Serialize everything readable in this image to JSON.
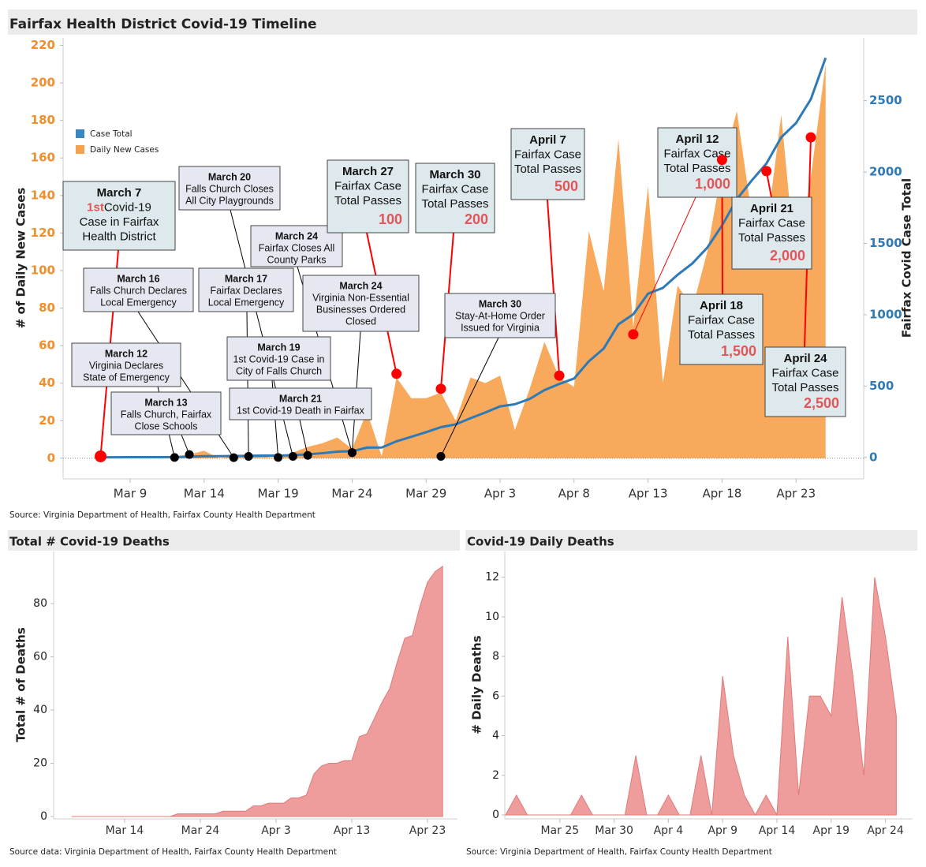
{
  "chart_data": [
    {
      "type": "combo",
      "title": "Fairfax Health District Covid-19 Timeline",
      "ylabel": "# of Daily New Cases",
      "y2label": "Fairfax Covid Case Total",
      "source": "Source: Virginia Department of Health, Fairfax County Health Department",
      "categories": [
        null,
        null,
        "Mar 9",
        null,
        null,
        null,
        null,
        "Mar 14",
        null,
        null,
        null,
        null,
        "Mar 19",
        null,
        null,
        null,
        null,
        "Mar 24",
        null,
        null,
        null,
        null,
        "Mar 29",
        null,
        null,
        null,
        null,
        "Apr 3",
        null,
        null,
        null,
        null,
        "Apr 8",
        null,
        null,
        null,
        null,
        "Apr 13",
        null,
        null,
        null,
        null,
        "Apr 18",
        null,
        null,
        null,
        null,
        "Apr 23",
        null,
        null
      ],
      "series": [
        {
          "name": "Case Total",
          "type": "line",
          "axis": "y2",
          "color": "#2e7ab6",
          "values": [
            1,
            1,
            2,
            2,
            2,
            3,
            5,
            9,
            9,
            10,
            12,
            13,
            13,
            16,
            22,
            30,
            41,
            44,
            69,
            70,
            113,
            145,
            177,
            212,
            232,
            275,
            315,
            358,
            373,
            410,
            472,
            515,
            553,
            674,
            763,
            933,
            1003,
            1148,
            1188,
            1280,
            1360,
            1470,
            1625,
            1810,
            1940,
            2060,
            2243,
            2343,
            2510,
            2800
          ]
        },
        {
          "name": "Daily New Cases",
          "type": "area",
          "axis": "y",
          "color": "#f9a95c",
          "values": [
            1,
            1,
            1,
            0,
            0,
            1,
            2,
            4,
            0,
            1,
            2,
            1,
            0,
            3,
            6,
            8,
            11,
            5,
            25,
            1,
            43,
            32,
            32,
            35,
            20,
            43,
            40,
            44,
            15,
            37,
            62,
            43,
            38,
            121,
            89,
            170,
            70,
            145,
            40,
            92,
            80,
            110,
            155,
            185,
            130,
            120,
            183,
            100,
            150,
            210
          ]
        }
      ],
      "ylim": [
        -11,
        224
      ],
      "yticks": [
        0,
        20,
        40,
        60,
        80,
        100,
        120,
        140,
        160,
        180,
        200,
        220
      ],
      "ytick_color": "#f28e2b",
      "y2lim": [
        -150,
        2940
      ],
      "y2ticks": [
        0,
        500,
        1000,
        1500,
        2000,
        2500
      ],
      "y2tick_color": "#2e7ab6",
      "legend": "upper left",
      "annotations": [
        {
          "title": "March 7",
          "lead": "1st",
          "lines": [
            "Covid-19",
            "Case in Fairfax",
            "Health District"
          ],
          "y": 1,
          "color": "red"
        },
        {
          "title": "March 12",
          "lines": [
            "Virginia Declares",
            "State of Emergency"
          ],
          "y": 0.4,
          "color": "black"
        },
        {
          "title": "March 13",
          "lines": [
            "Falls Church, Fairfax",
            "Close Schools"
          ],
          "y": 2,
          "color": "black"
        },
        {
          "title": "March 16",
          "lines": [
            "Falls Church Declares",
            "Local Emergency"
          ],
          "y": 0.3,
          "color": "black"
        },
        {
          "title": "March 17",
          "lines": [
            "Fairfax Declares",
            "Local Emergency"
          ],
          "y": 1,
          "color": "black"
        },
        {
          "title": "March 19",
          "lines": [
            "1st Covid-19 Case in",
            "City of Falls Church"
          ],
          "y": 0.4,
          "color": "black"
        },
        {
          "title": "March 20",
          "lines": [
            "Falls Church Closes",
            "All City Playgrounds"
          ],
          "y": 1,
          "color": "black"
        },
        {
          "title": "March 21",
          "lines": [
            "1st Covid-19 Death in Fairfax"
          ],
          "y": 1.5,
          "color": "black"
        },
        {
          "title": "March 24",
          "lines": [
            "Fairfax Closes All",
            "County Parks"
          ],
          "y": 3,
          "color": "black"
        },
        {
          "title": "March 24",
          "lines": [
            "Virginia Non-Essential",
            "Businesses Ordered",
            "Closed"
          ],
          "y": 3,
          "color": "black"
        },
        {
          "title": "March 27",
          "lines": [
            "Fairfax Case",
            "Total Passes"
          ],
          "highlight": "100",
          "y": 45,
          "color": "red"
        },
        {
          "title": "March 30",
          "lines": [
            "Fairfax Case",
            "Total Passes"
          ],
          "highlight": "200",
          "y": 37,
          "color": "red"
        },
        {
          "title": "March 30",
          "lines": [
            "Stay-At-Home Order",
            "Issued for Virginia"
          ],
          "y": 1,
          "color": "black"
        },
        {
          "title": "April 7",
          "lines": [
            "Fairfax Case",
            "Total Passes"
          ],
          "highlight": "500",
          "y": 44,
          "color": "red"
        },
        {
          "title": "April 12",
          "lines": [
            "Fairfax Case",
            "Total Passes"
          ],
          "highlight": "1,000",
          "y": 66,
          "color": "red"
        },
        {
          "title": "April 18",
          "lines": [
            "Fairfax Case",
            "Total Passes"
          ],
          "highlight": "1,500",
          "y": 159,
          "color": "red"
        },
        {
          "title": "April 21",
          "lines": [
            "Fairfax Case",
            "Total Passes"
          ],
          "highlight": "2,000",
          "y": 153,
          "color": "red"
        },
        {
          "title": "April 24",
          "lines": [
            "Fairfax Case",
            "Total Passes"
          ],
          "highlight": "2,500",
          "y": 171,
          "color": "red"
        }
      ]
    },
    {
      "type": "area",
      "title": "Total # Covid-19 Deaths",
      "ylabel": "Total # of Deaths",
      "source": "Source data: Virginia Department of Health, Fairfax County Health Department",
      "categories": [
        null,
        null,
        null,
        null,
        null,
        null,
        null,
        "Mar 14",
        null,
        null,
        null,
        null,
        null,
        null,
        null,
        null,
        null,
        "Mar 24",
        null,
        null,
        null,
        null,
        null,
        null,
        null,
        null,
        null,
        "Apr 3",
        null,
        null,
        null,
        null,
        null,
        null,
        null,
        null,
        null,
        "Apr 13",
        null,
        null,
        null,
        null,
        null,
        null,
        null,
        null,
        null,
        "Apr 23",
        null,
        null
      ],
      "series": [
        {
          "name": "Total # of Deaths",
          "type": "area",
          "axis": "y",
          "color": "#ee9c9c",
          "values": [
            0,
            0,
            0,
            0,
            0,
            0,
            0,
            0,
            0,
            0,
            0,
            0,
            0,
            0,
            1,
            1,
            1,
            1,
            1,
            1,
            2,
            2,
            2,
            2,
            4,
            4,
            5,
            5,
            5,
            7,
            7,
            8,
            16,
            19,
            20,
            20,
            21,
            21,
            30,
            31,
            37,
            43,
            48,
            58,
            67,
            68,
            79,
            88,
            92,
            94
          ]
        }
      ],
      "ylim": [
        -0.9,
        99.6
      ],
      "yticks": [
        0,
        20,
        40,
        60,
        80
      ]
    },
    {
      "type": "area",
      "title": "Covid-19 Daily Deaths",
      "ylabel": "# Daily Deaths",
      "source": "Source: Virginia Department of Health, Fairfax County Health Department",
      "categories": [
        null,
        null,
        null,
        null,
        null,
        "Mar 25",
        null,
        null,
        null,
        null,
        "Mar 30",
        null,
        null,
        null,
        null,
        "Apr 4",
        null,
        null,
        null,
        null,
        "Apr 9",
        null,
        null,
        null,
        null,
        "Apr 14",
        null,
        null,
        null,
        null,
        "Apr 19",
        null,
        null,
        null,
        null,
        "Apr 24",
        null
      ],
      "series": [
        {
          "name": "# Daily Deaths",
          "type": "area",
          "axis": "y",
          "color": "#ee9c9c",
          "values": [
            0,
            1,
            0,
            0,
            0,
            0,
            0,
            1,
            0,
            0,
            0,
            0,
            3,
            0,
            0,
            1,
            0,
            0,
            3,
            0,
            7,
            3,
            1,
            0,
            1,
            0,
            9,
            1,
            6,
            6,
            5,
            11,
            7,
            2,
            12,
            9,
            5
          ]
        }
      ],
      "ylim": [
        -0.2,
        13.3
      ],
      "yticks": [
        0,
        2,
        4,
        6,
        8,
        10,
        12
      ]
    }
  ]
}
